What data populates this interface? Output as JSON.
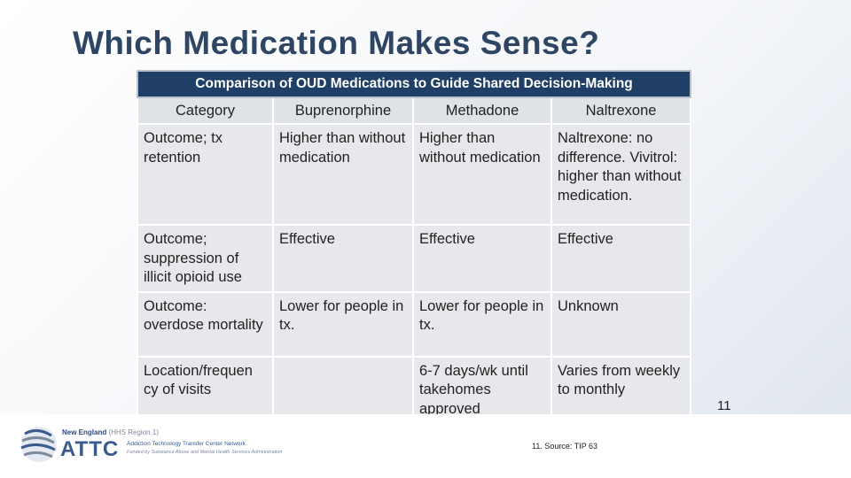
{
  "slide": {
    "title": "Which Medication Makes Sense?",
    "page_number": "11",
    "source": "11. Source: TIP 63"
  },
  "table": {
    "caption": "Comparison of OUD Medications to Guide Shared Decision-Making",
    "headers": [
      "Category",
      "Buprenorphine",
      "Methadone",
      "Naltrexone"
    ],
    "rows": [
      [
        "Outcome; tx retention",
        "Higher than without medication",
        "Higher than without medication",
        "Naltrexone: no difference. Vivitrol: higher than without medication."
      ],
      [
        "Outcome; suppression of illicit opioid use",
        "Effective",
        "Effective",
        "Effective"
      ],
      [
        "Outcome: overdose mortality",
        "Lower for people in tx.",
        "Lower for people in tx.",
        "Unknown"
      ],
      [
        "Location/frequen cy of visits",
        "",
        "6-7 days/wk until takehomes approved",
        "Varies from weekly to monthly"
      ]
    ]
  },
  "footer": {
    "region_name": "New England",
    "region_detail": "(HHS Region 1)",
    "logo_text": "ATTC",
    "network_name": "Addiction Technology Transfer Center Network",
    "funded_by": "Funded by Substance Abuse and Mental Health Services Administration"
  }
}
